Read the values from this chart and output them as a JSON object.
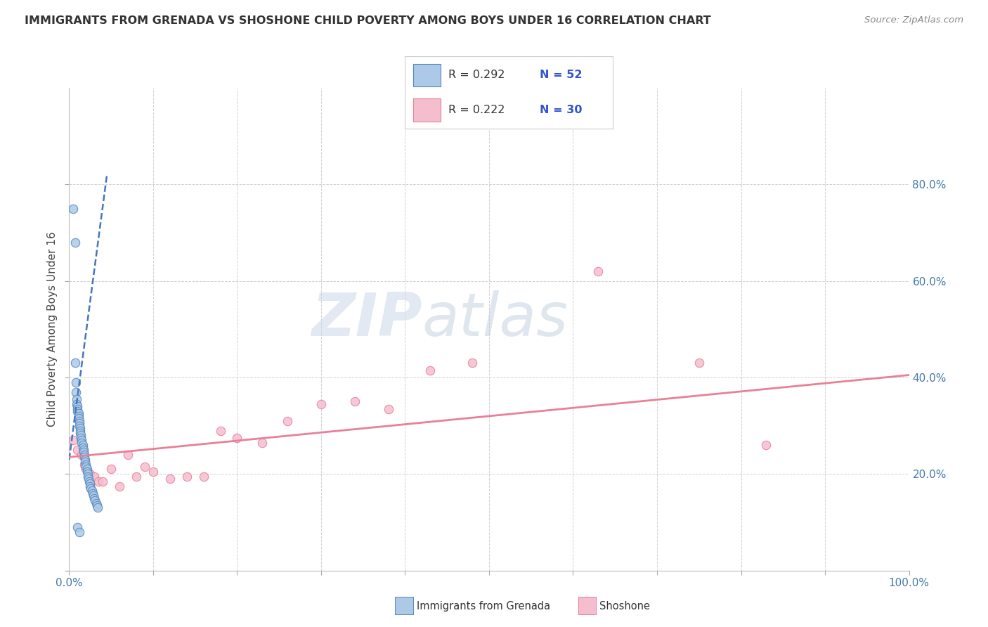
{
  "title": "IMMIGRANTS FROM GRENADA VS SHOSHONE CHILD POVERTY AMONG BOYS UNDER 16 CORRELATION CHART",
  "source": "Source: ZipAtlas.com",
  "ylabel": "Child Poverty Among Boys Under 16",
  "xlim": [
    0.0,
    1.0
  ],
  "ylim": [
    0.0,
    1.0
  ],
  "xticks": [
    0.0,
    0.1,
    0.2,
    0.3,
    0.4,
    0.5,
    0.6,
    0.7,
    0.8,
    0.9,
    1.0
  ],
  "xticklabels": [
    "0.0%",
    "",
    "",
    "",
    "",
    "",
    "",
    "",
    "",
    "",
    "100.0%"
  ],
  "yticks": [
    0.0,
    0.2,
    0.4,
    0.6,
    0.8
  ],
  "yticklabels_right": [
    "",
    "20.0%",
    "40.0%",
    "60.0%",
    "80.0%"
  ],
  "legend_r1": "R = 0.292",
  "legend_n1": "N = 52",
  "legend_r2": "R = 0.222",
  "legend_n2": "N = 30",
  "color_grenada_fill": "#adc9e8",
  "color_grenada_edge": "#5588bb",
  "color_shoshone_fill": "#f5bece",
  "color_shoshone_edge": "#e8809a",
  "color_grenada_trend": "#4477bb",
  "color_shoshone_trend": "#e8809a",
  "scatter_grenada_x": [
    0.005,
    0.007,
    0.007,
    0.008,
    0.008,
    0.009,
    0.009,
    0.01,
    0.01,
    0.01,
    0.011,
    0.011,
    0.011,
    0.012,
    0.012,
    0.012,
    0.013,
    0.013,
    0.013,
    0.014,
    0.014,
    0.015,
    0.015,
    0.016,
    0.016,
    0.017,
    0.017,
    0.018,
    0.018,
    0.019,
    0.019,
    0.02,
    0.02,
    0.021,
    0.021,
    0.022,
    0.022,
    0.023,
    0.024,
    0.025,
    0.025,
    0.026,
    0.027,
    0.028,
    0.029,
    0.03,
    0.031,
    0.032,
    0.033,
    0.034,
    0.01,
    0.012
  ],
  "scatter_grenada_y": [
    0.75,
    0.68,
    0.43,
    0.39,
    0.37,
    0.355,
    0.345,
    0.34,
    0.335,
    0.33,
    0.325,
    0.32,
    0.315,
    0.31,
    0.305,
    0.3,
    0.295,
    0.29,
    0.285,
    0.28,
    0.275,
    0.27,
    0.265,
    0.26,
    0.255,
    0.25,
    0.245,
    0.24,
    0.235,
    0.23,
    0.225,
    0.22,
    0.215,
    0.21,
    0.205,
    0.2,
    0.195,
    0.19,
    0.185,
    0.18,
    0.175,
    0.17,
    0.165,
    0.16,
    0.155,
    0.15,
    0.145,
    0.14,
    0.135,
    0.13,
    0.09,
    0.08
  ],
  "scatter_shoshone_x": [
    0.005,
    0.01,
    0.015,
    0.018,
    0.02,
    0.025,
    0.03,
    0.035,
    0.04,
    0.05,
    0.06,
    0.07,
    0.08,
    0.09,
    0.1,
    0.12,
    0.14,
    0.16,
    0.18,
    0.2,
    0.23,
    0.26,
    0.3,
    0.34,
    0.38,
    0.43,
    0.48,
    0.63,
    0.75,
    0.83
  ],
  "scatter_shoshone_y": [
    0.27,
    0.25,
    0.24,
    0.22,
    0.21,
    0.2,
    0.195,
    0.185,
    0.185,
    0.21,
    0.175,
    0.24,
    0.195,
    0.215,
    0.205,
    0.19,
    0.195,
    0.195,
    0.29,
    0.275,
    0.265,
    0.31,
    0.345,
    0.35,
    0.335,
    0.415,
    0.43,
    0.62,
    0.43,
    0.26
  ],
  "watermark_zip": "ZIP",
  "watermark_atlas": "atlas",
  "grenada_trend_x": [
    0.0,
    0.045
  ],
  "grenada_trend_y": [
    0.23,
    0.82
  ],
  "shoshone_trend_x": [
    0.0,
    1.0
  ],
  "shoshone_trend_y": [
    0.235,
    0.405
  ]
}
